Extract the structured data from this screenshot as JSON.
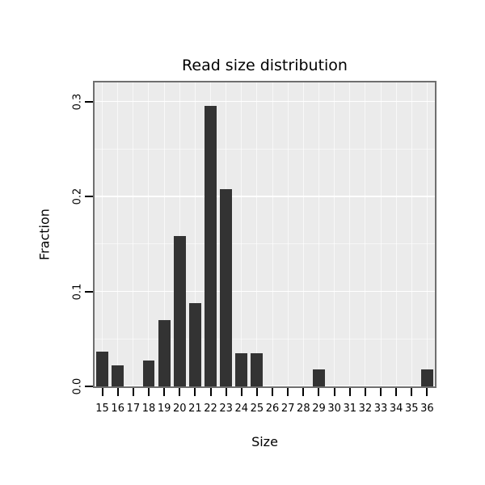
{
  "chart_data": {
    "type": "bar",
    "title": "Read size distribution",
    "xlabel": "Size",
    "ylabel": "Fraction",
    "categories": [
      15,
      16,
      17,
      18,
      19,
      20,
      21,
      22,
      23,
      24,
      25,
      26,
      27,
      28,
      29,
      30,
      31,
      32,
      33,
      34,
      35,
      36
    ],
    "values": [
      0.037,
      0.022,
      0,
      0.027,
      0.07,
      0.158,
      0.088,
      0.295,
      0.208,
      0.035,
      0.035,
      0,
      0,
      0,
      0.018,
      0,
      0,
      0,
      0,
      0,
      0,
      0.018
    ],
    "ylim": [
      0,
      0.32
    ],
    "yticks": [
      0,
      0.1,
      0.2,
      0.3
    ],
    "ytick_labels": [
      "0.0",
      "0.1",
      "0.2",
      "0.3"
    ],
    "grid": "on",
    "legend": "none",
    "bar_color": "#333333",
    "panel_bg": "#ebebeb",
    "grid_color": "#ffffff",
    "panel_border_color": "#6f6f6f",
    "tick_color": "#000000",
    "text_color": "#000000"
  }
}
